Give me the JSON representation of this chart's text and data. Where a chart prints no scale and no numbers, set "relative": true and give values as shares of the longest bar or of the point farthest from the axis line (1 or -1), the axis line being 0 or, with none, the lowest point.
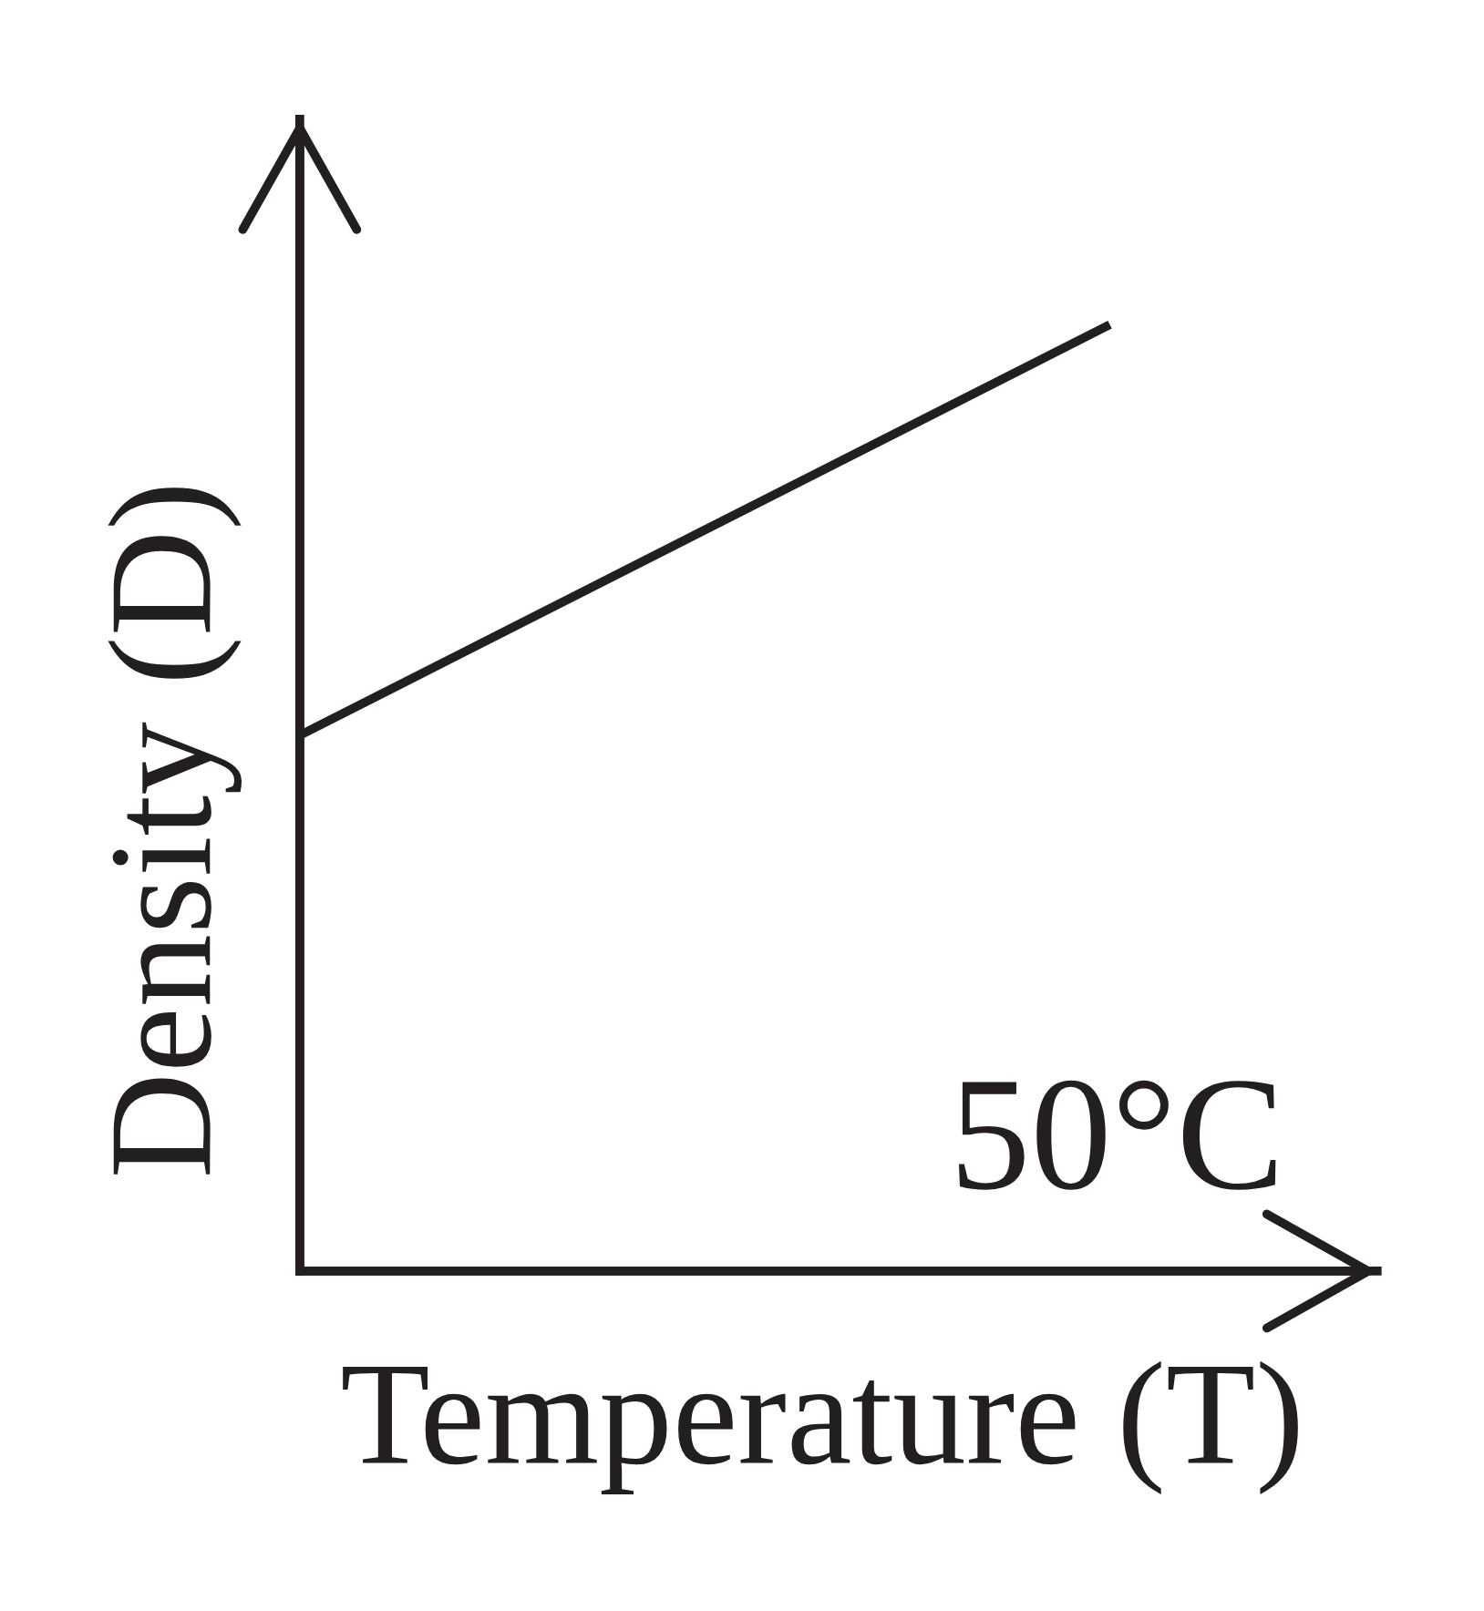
{
  "chart_data": {
    "type": "line",
    "relative": true,
    "xlabel": "Temperature (T)",
    "ylabel": "Density (D)",
    "categories": [
      null,
      null
    ],
    "series": [
      {
        "color": "#231f20",
        "values": [
          0.566,
          1
        ]
      }
    ],
    "annotations": [
      "50°C"
    ],
    "legend": false,
    "marker": "none",
    "line_style": "solid"
  }
}
